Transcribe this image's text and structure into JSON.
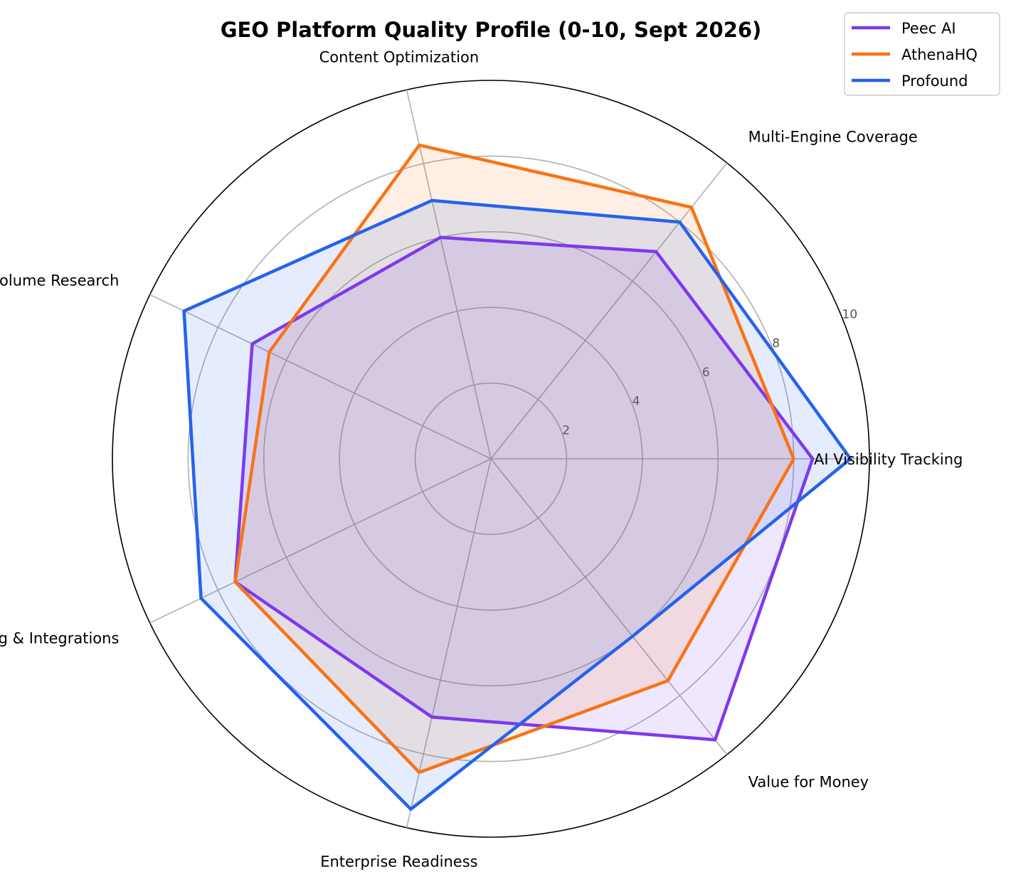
{
  "chart_data": {
    "type": "radar",
    "title": "GEO Platform Quality Profile (0-10, Sept 2026)",
    "axes": [
      "AI Visibility Tracking",
      "Multi-Engine Coverage",
      "Content Optimization",
      "Prompt & Volume Research",
      "Reporting & Integrations",
      "Enterprise Readiness",
      "Value for Money"
    ],
    "rlim": [
      0,
      10
    ],
    "rticks": [
      "2",
      "4",
      "6",
      "8",
      "10"
    ],
    "grid": true,
    "legend_position": "top-right",
    "series": [
      {
        "name": "Peec AI",
        "color": "#7c3aed",
        "values": [
          8.5,
          7.0,
          6.0,
          7.0,
          7.5,
          7.0,
          9.5
        ]
      },
      {
        "name": "AthenaHQ",
        "color": "#f97316",
        "values": [
          8.0,
          8.5,
          8.5,
          6.5,
          7.5,
          8.5,
          7.5
        ]
      },
      {
        "name": "Profound",
        "color": "#2563eb",
        "values": [
          9.5,
          8.0,
          7.0,
          9.0,
          8.5,
          9.5,
          6.0
        ]
      }
    ]
  }
}
